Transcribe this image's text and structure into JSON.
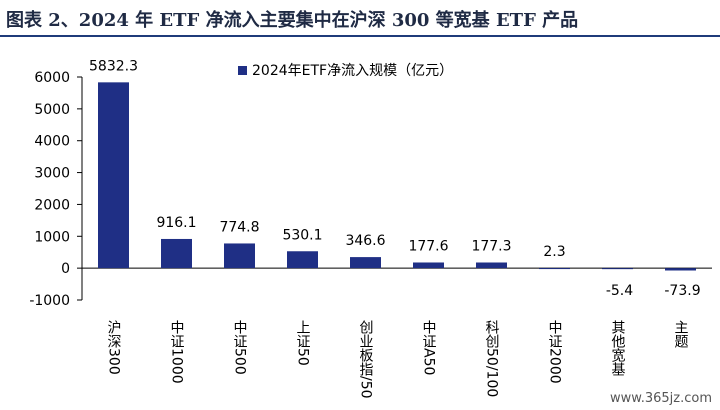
{
  "header": {
    "title": "图表 2、2024 年 ETF 净流入主要集中在沪深 300 等宽基 ETF 产品"
  },
  "watermark": "www.365jz.com",
  "chart_data": {
    "type": "bar",
    "categories": [
      "沪深300",
      "中证1000",
      "中证500",
      "上证50",
      "创业板指/50",
      "中证A50",
      "科创50/100",
      "中证2000",
      "其他宽基",
      "主题"
    ],
    "series": [
      {
        "name": "2024年ETF净流入规模（亿元）",
        "values": [
          5832.3,
          916.1,
          774.8,
          530.1,
          346.6,
          177.6,
          177.3,
          2.3,
          -5.4,
          -73.9
        ]
      }
    ],
    "data_labels": [
      "5832.3",
      "916.1",
      "774.8",
      "530.1",
      "346.6",
      "177.6",
      "177.3",
      "2.3",
      "-5.4",
      "-73.9"
    ],
    "ylim": [
      -1000,
      6000
    ],
    "yticks": [
      -1000,
      0,
      1000,
      2000,
      3000,
      4000,
      5000,
      6000
    ],
    "legend_position": "top",
    "colors": {
      "bar": "#1f2f85",
      "axis": "#000000"
    },
    "grid": false
  }
}
